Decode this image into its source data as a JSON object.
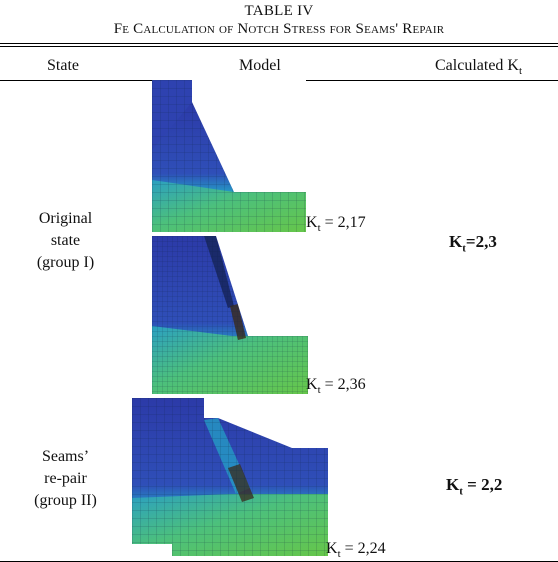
{
  "table": {
    "number": "TABLE IV",
    "caption": "Fe Calculation of Notch Stress for Seams' Repair"
  },
  "headers": {
    "state": "State",
    "model": "Model",
    "calc_main": "Calculated K",
    "calc_sub": "t"
  },
  "rows": [
    {
      "state_lines": [
        "Original",
        "state",
        "(group I)"
      ],
      "result_main": "K",
      "result_sub": "t",
      "result_value": "=2,3",
      "models": [
        {
          "label_main": "K",
          "label_sub": "t",
          "label_value": " = 2,17",
          "icon": "fe-mesh-image"
        },
        {
          "label_main": "K",
          "label_sub": "t",
          "label_value": " = 2,36",
          "icon": "fe-mesh-image"
        }
      ]
    },
    {
      "state_lines": [
        "Seams’",
        "re-pair",
        "(group II)"
      ],
      "result_main": "K",
      "result_sub": "t",
      "result_value": " = 2,2",
      "models": [
        {
          "label_main": "K",
          "label_sub": "t",
          "label_value": " = 2,24",
          "icon": "fe-mesh-image"
        }
      ]
    }
  ],
  "colors": {
    "mesh_blue": "#2c3aa8",
    "mesh_cyan": "#23a6c7",
    "mesh_green": "#5cc44a",
    "mesh_dark": "#3a2a1a"
  }
}
